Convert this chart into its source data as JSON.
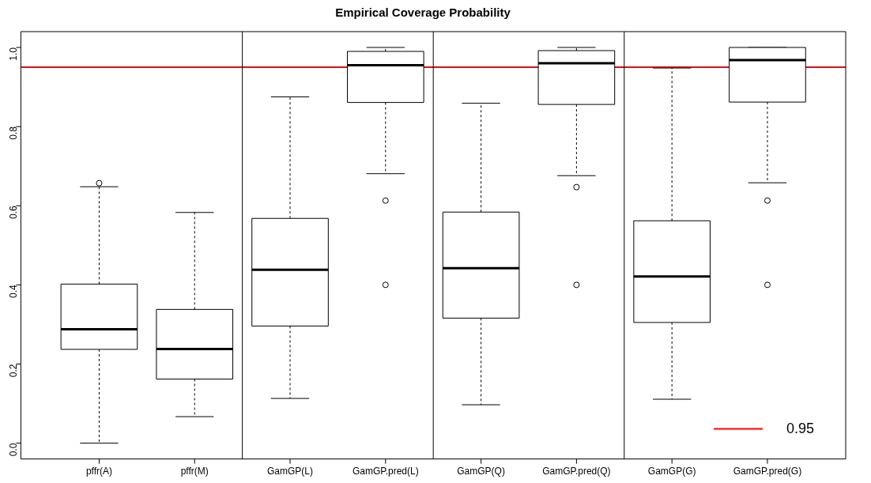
{
  "chart_data": {
    "type": "box",
    "title": "Empirical Coverage Probability",
    "categories": [
      "pffr(A)",
      "pffr(M)",
      "GamGP(L)",
      "GamGP.pred(L)",
      "GamGP(Q)",
      "GamGP.pred(Q)",
      "GamGP(G)",
      "GamGP.pred(G)"
    ],
    "boxes": [
      {
        "low": 0.0,
        "q1": 0.237,
        "median": 0.288,
        "q3": 0.402,
        "high": 0.648,
        "outliers": [
          0.657
        ]
      },
      {
        "low": 0.067,
        "q1": 0.162,
        "median": 0.238,
        "q3": 0.338,
        "high": 0.583
      },
      {
        "low": 0.113,
        "q1": 0.296,
        "median": 0.438,
        "q3": 0.568,
        "high": 0.875
      },
      {
        "low": 0.681,
        "q1": 0.861,
        "median": 0.955,
        "q3": 0.99,
        "high": 1.0,
        "outliers": [
          0.613,
          0.4
        ]
      },
      {
        "low": 0.097,
        "q1": 0.316,
        "median": 0.442,
        "q3": 0.584,
        "high": 0.859
      },
      {
        "low": 0.676,
        "q1": 0.856,
        "median": 0.96,
        "q3": 0.992,
        "high": 1.0,
        "outliers": [
          0.647,
          0.4
        ]
      },
      {
        "low": 0.111,
        "q1": 0.305,
        "median": 0.421,
        "q3": 0.562,
        "high": 0.948
      },
      {
        "low": 0.658,
        "q1": 0.862,
        "median": 0.968,
        "q3": 1.0,
        "high": 1.0,
        "outliers": [
          0.613,
          0.4
        ]
      }
    ],
    "ylim": [
      -0.04,
      1.04
    ],
    "yticks": [
      {
        "value": 0,
        "label": "0.0"
      },
      0.2,
      0.4,
      0.6,
      0.8,
      {
        "value": 1,
        "label": "1.0"
      }
    ],
    "ref_lines": [
      {
        "axis": "y",
        "value": 0.95,
        "label": "0.95",
        "color": "#ff0000"
      }
    ],
    "legend": "bottom right",
    "grid": false
  }
}
